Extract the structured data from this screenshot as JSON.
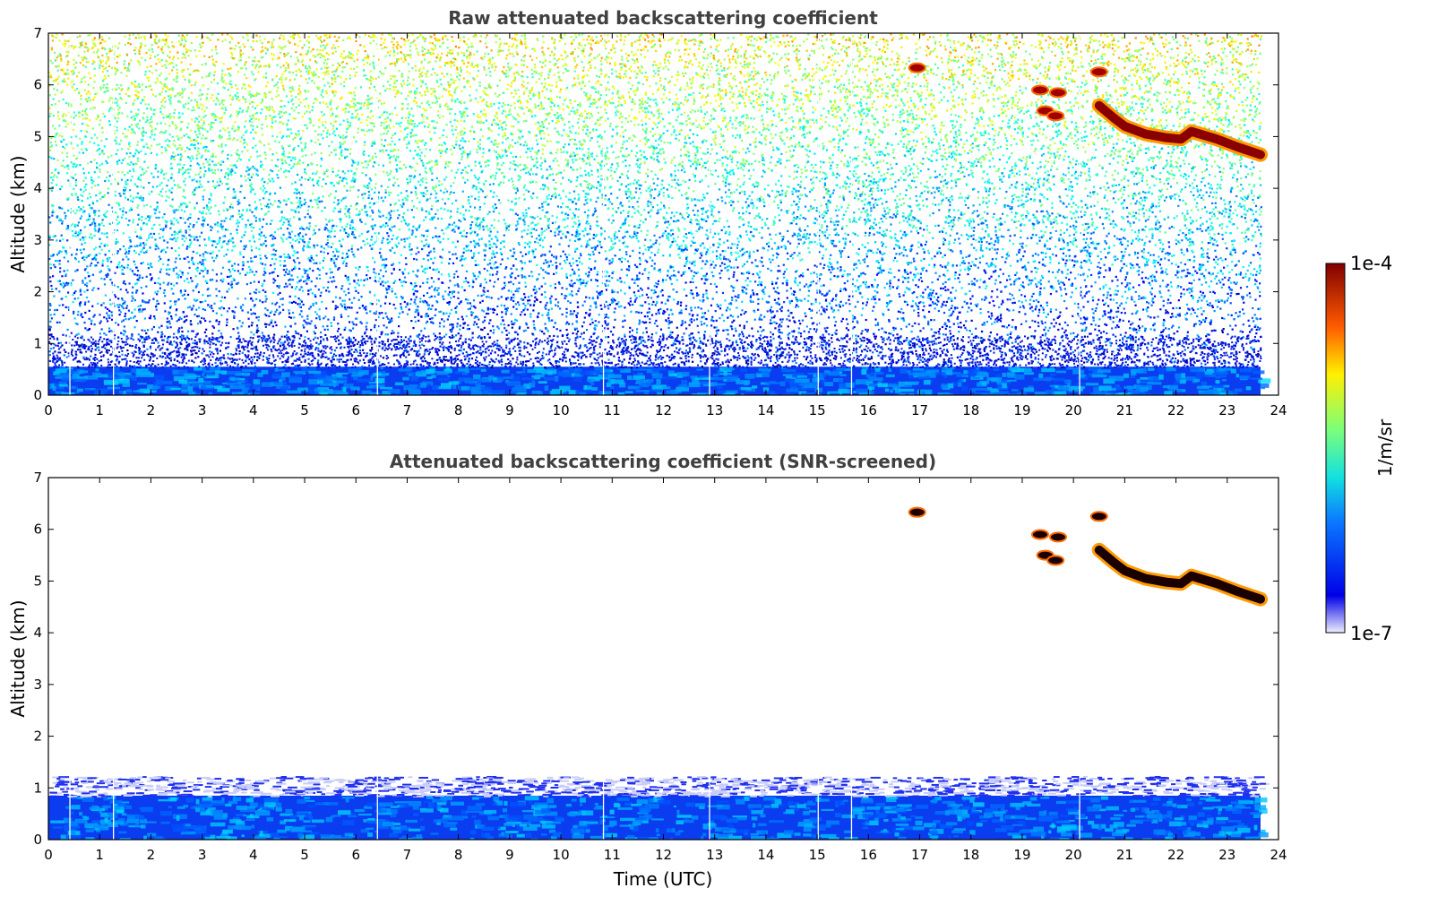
{
  "chart_data": [
    {
      "type": "heatmap",
      "title": "Raw attenuated backscattering coefficient",
      "xlabel": "",
      "ylabel": "Altitude (km)",
      "xlim": [
        0,
        24
      ],
      "ylim": [
        0,
        7
      ],
      "x_ticks": [
        "0",
        "1",
        "2",
        "3",
        "4",
        "5",
        "6",
        "7",
        "8",
        "9",
        "10",
        "11",
        "12",
        "13",
        "14",
        "15",
        "16",
        "17",
        "18",
        "19",
        "20",
        "21",
        "22",
        "23",
        "24"
      ],
      "y_ticks": [
        "0",
        "1",
        "2",
        "3",
        "4",
        "5",
        "6",
        "7"
      ],
      "data_end_hour": 23.65,
      "gap_hours": [
        0.42,
        1.27,
        6.42,
        10.83,
        12.9,
        15.02,
        15.67,
        20.12
      ],
      "boundary_layer_top_km": 0.55,
      "cloud_layer": {
        "x": [
          20.5,
          20.8,
          21.0,
          21.4,
          21.8,
          22.1,
          22.3,
          22.8,
          23.2,
          23.65
        ],
        "y": [
          5.6,
          5.35,
          5.2,
          5.05,
          4.98,
          4.95,
          5.1,
          4.95,
          4.8,
          4.65
        ]
      },
      "cloud_patches": [
        {
          "x": 16.95,
          "y": 6.33
        },
        {
          "x": 19.35,
          "y": 5.9
        },
        {
          "x": 19.7,
          "y": 5.85
        },
        {
          "x": 19.45,
          "y": 5.5
        },
        {
          "x": 19.65,
          "y": 5.4
        },
        {
          "x": 20.5,
          "y": 6.25
        }
      ]
    },
    {
      "type": "heatmap",
      "title": "Attenuated backscattering coefficient (SNR-screened)",
      "xlabel": "Time (UTC)",
      "ylabel": "Altitude (km)",
      "xlim": [
        0,
        24
      ],
      "ylim": [
        0,
        7
      ],
      "x_ticks": [
        "0",
        "1",
        "2",
        "3",
        "4",
        "5",
        "6",
        "7",
        "8",
        "9",
        "10",
        "11",
        "12",
        "13",
        "14",
        "15",
        "16",
        "17",
        "18",
        "19",
        "20",
        "21",
        "22",
        "23",
        "24"
      ],
      "y_ticks": [
        "0",
        "1",
        "2",
        "3",
        "4",
        "5",
        "6",
        "7"
      ],
      "data_end_hour": 23.65,
      "gap_hours": [
        0.42,
        1.27,
        6.42,
        10.83,
        12.9,
        15.02,
        15.67,
        20.12
      ],
      "boundary_layer_top_km": 0.85
    }
  ],
  "colorbar": {
    "label": "1/m/sr",
    "max_label": "1e-4",
    "min_label": "1e-7",
    "colormap": "jet",
    "scale": "log"
  }
}
